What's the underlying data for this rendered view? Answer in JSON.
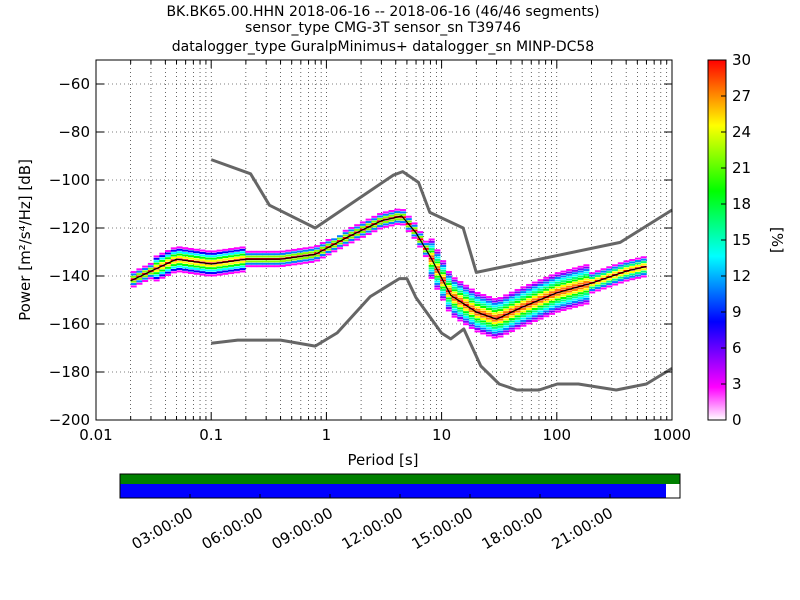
{
  "chart_data": {
    "type": "heatmap",
    "title_lines": [
      "BK.BK65.00.HHN   2018-06-16 -- 2018-06-16  (46/46 segments)",
      "sensor_type CMG-3T sensor_sn T39746",
      "datalogger_type GuralpMinimus+ datalogger_sn MINP-DC58"
    ],
    "xlabel": "Period [s]",
    "ylabel": "Power [m²/s⁴/Hz] [dB]",
    "x_scale": "log",
    "xlim": [
      0.01,
      1000
    ],
    "ylim": [
      -200,
      -50
    ],
    "x_ticks": [
      0.01,
      0.1,
      1,
      10,
      100,
      1000
    ],
    "x_tick_labels": [
      "0.01",
      "0.1",
      "1",
      "10",
      "100",
      "1000"
    ],
    "y_ticks": [
      -200,
      -180,
      -160,
      -140,
      -120,
      -100,
      -80,
      -60
    ],
    "y_tick_labels": [
      "−200",
      "−180",
      "−160",
      "−140",
      "−120",
      "−100",
      "−80",
      "−60"
    ],
    "grid": true,
    "colorbar": {
      "label": "[%]",
      "range": [
        0,
        30
      ],
      "ticks": [
        0,
        3,
        6,
        9,
        12,
        15,
        18,
        21,
        24,
        27,
        30
      ]
    },
    "nhnm": {
      "period": [
        0.1,
        0.22,
        0.32,
        0.8,
        3.8,
        4.6,
        6.3,
        7.9,
        15.4,
        20,
        354.8,
        1000
      ],
      "power": [
        -91.5,
        -97.4,
        -110.5,
        -120,
        -98,
        -96.5,
        -101,
        -113.5,
        -120,
        -138.5,
        -126,
        -112.5
      ]
    },
    "nlnm": {
      "period": [
        0.1,
        0.17,
        0.4,
        0.8,
        1.24,
        2.4,
        4.3,
        5.0,
        6.0,
        10.0,
        12.0,
        15.6,
        21.9,
        31.6,
        45,
        70,
        101,
        154,
        328,
        600,
        1000
      ],
      "power": [
        -168,
        -166.7,
        -166.7,
        -169.2,
        -163.7,
        -148.6,
        -141.1,
        -141.1,
        -149,
        -163.8,
        -166.2,
        -162.1,
        -177.5,
        -185,
        -187.5,
        -187.5,
        -185,
        -185,
        -187.5,
        -185,
        -178.5
      ]
    },
    "mode": {
      "period": [
        0.02,
        0.03,
        0.05,
        0.1,
        0.2,
        0.4,
        0.8,
        1.5,
        3.0,
        4.5,
        6.0,
        8.0,
        12,
        20,
        30,
        50,
        100,
        200,
        400,
        600
      ],
      "power": [
        -142,
        -138,
        -133,
        -135,
        -133,
        -133,
        -131,
        -124,
        -117,
        -115,
        -122,
        -132,
        -148,
        -155,
        -158,
        -153,
        -147,
        -143,
        -138,
        -136
      ]
    },
    "colormap": [
      "#ffffff",
      "#ff00ff",
      "#8000ff",
      "#0000ff",
      "#0080ff",
      "#00ffff",
      "#00ff80",
      "#00ff00",
      "#80ff00",
      "#ffff00",
      "#ff8000",
      "#ff0000"
    ]
  },
  "timeline": {
    "tick_labels": [
      "03:00:00",
      "06:00:00",
      "09:00:00",
      "12:00:00",
      "15:00:00",
      "18:00:00",
      "21:00:00"
    ],
    "segments_color": "#0000ff",
    "coverage_color": "#008000",
    "segments_coverage_fraction": 0.975
  }
}
